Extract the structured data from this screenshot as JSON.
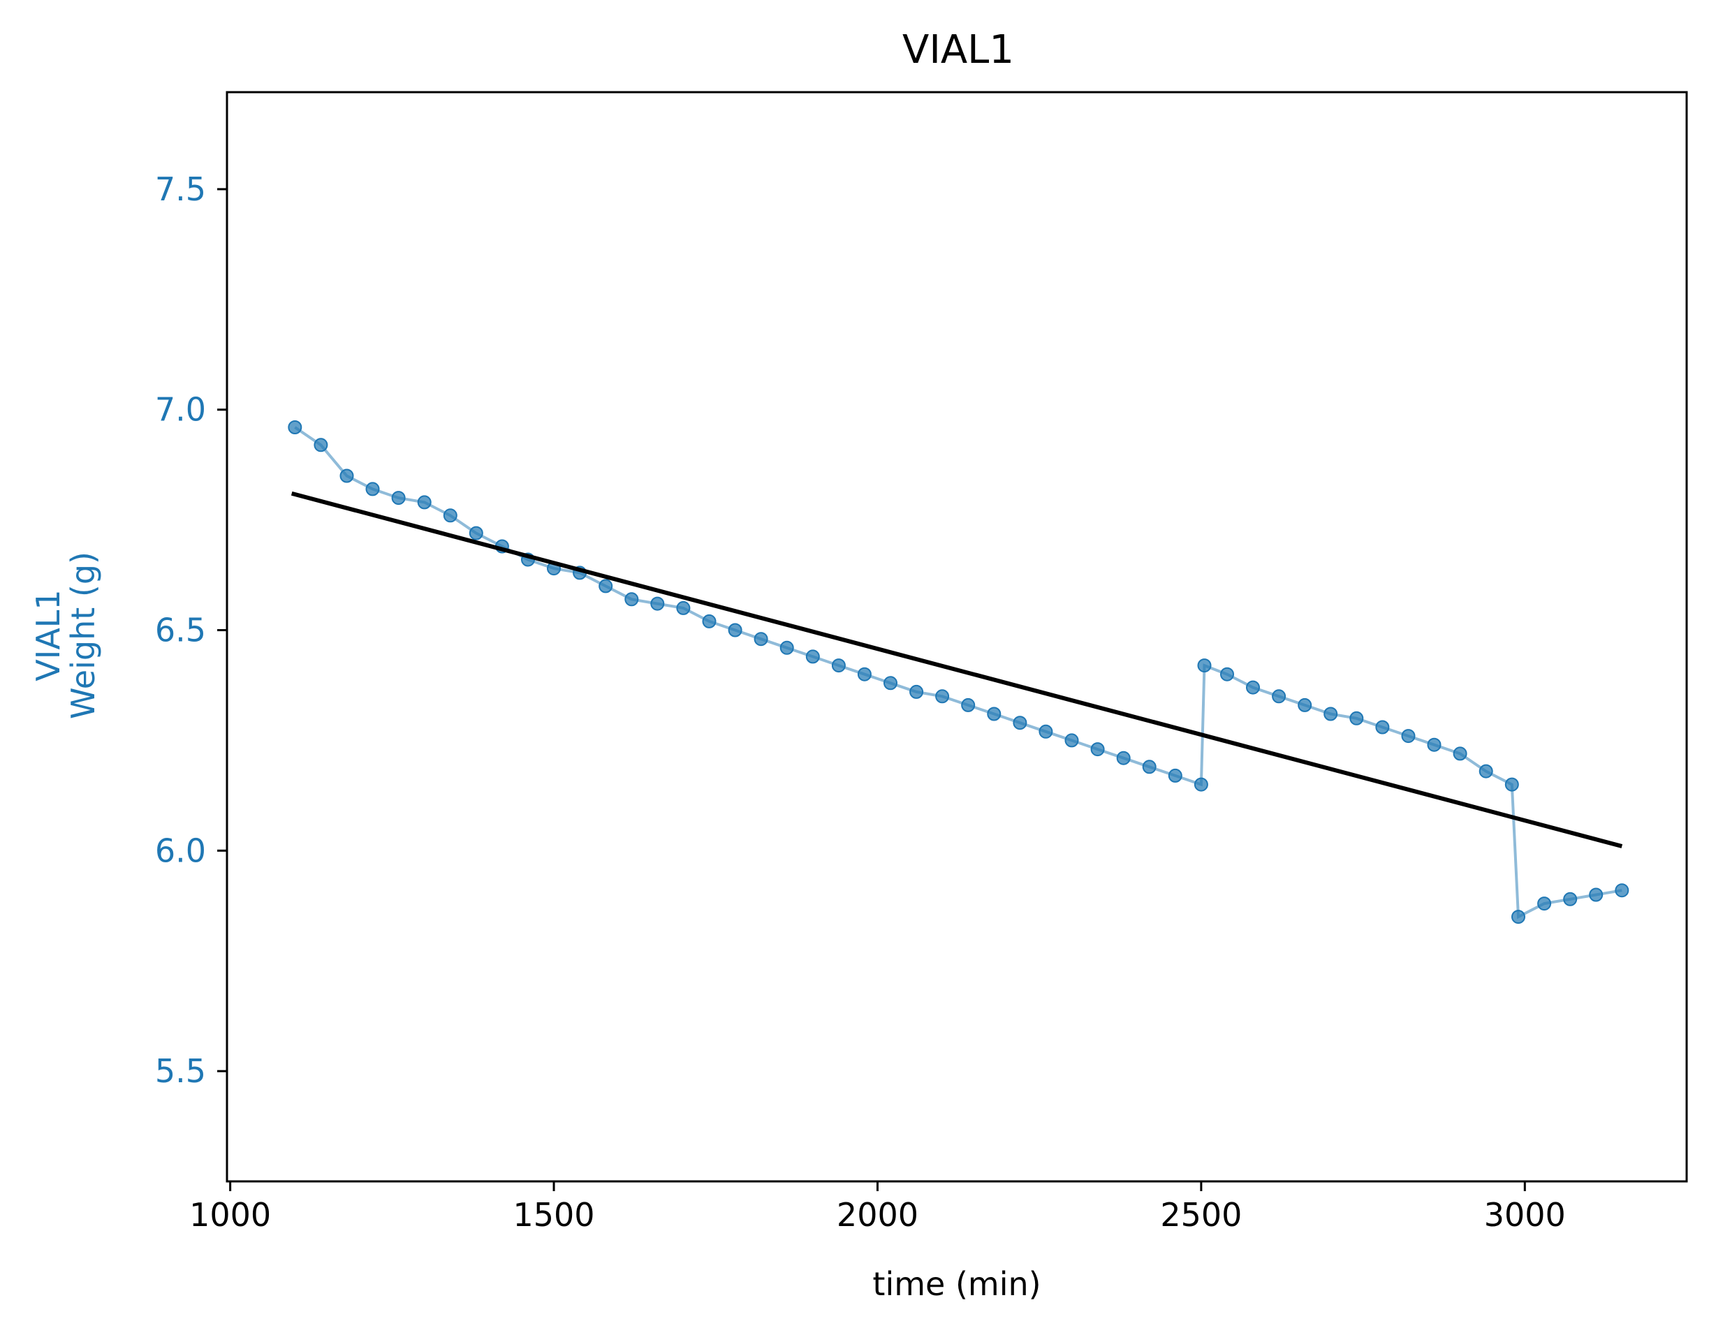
{
  "chart_data": {
    "type": "line",
    "title": "VIAL1",
    "xlabel": "time (min)",
    "ylabel_line1": "VIAL1",
    "ylabel_line2": "Weight (g)",
    "xlim": [
      995,
      3250
    ],
    "ylim": [
      5.25,
      7.72
    ],
    "xticks": [
      1000,
      1500,
      2000,
      2500,
      3000
    ],
    "yticks": [
      5.5,
      6.0,
      6.5,
      7.0,
      7.5
    ],
    "grid": false,
    "colors": {
      "series": "#1f77b4",
      "fit": "#000000",
      "ytick_labels": "#1f77b4"
    },
    "series": [
      {
        "x": [
          1100,
          1140,
          1180,
          1220,
          1260,
          1300,
          1340,
          1380,
          1420,
          1460,
          1500,
          1540,
          1580,
          1620,
          1660,
          1700,
          1740,
          1780,
          1820,
          1860,
          1900,
          1940,
          1980,
          2020,
          2060,
          2100,
          2140,
          2180,
          2220,
          2260,
          2300,
          2340,
          2380,
          2420,
          2460,
          2500,
          2505,
          2540,
          2580,
          2620,
          2660,
          2700,
          2740,
          2780,
          2820,
          2860,
          2900,
          2940,
          2980,
          2990,
          3030,
          3070,
          3110,
          3150
        ],
        "y": [
          6.96,
          6.92,
          6.85,
          6.82,
          6.8,
          6.79,
          6.76,
          6.72,
          6.69,
          6.66,
          6.64,
          6.63,
          6.6,
          6.57,
          6.56,
          6.55,
          6.52,
          6.5,
          6.48,
          6.46,
          6.44,
          6.42,
          6.4,
          6.38,
          6.36,
          6.35,
          6.33,
          6.31,
          6.29,
          6.27,
          6.25,
          6.23,
          6.21,
          6.19,
          6.17,
          6.15,
          6.42,
          6.4,
          6.37,
          6.35,
          6.33,
          6.31,
          6.3,
          6.28,
          6.26,
          6.24,
          6.22,
          6.18,
          6.15,
          5.85,
          5.88,
          5.89,
          5.9,
          5.91
        ]
      },
      {
        "name": "fit",
        "x": [
          1095,
          3150
        ],
        "y": [
          6.81,
          6.01
        ]
      }
    ]
  }
}
